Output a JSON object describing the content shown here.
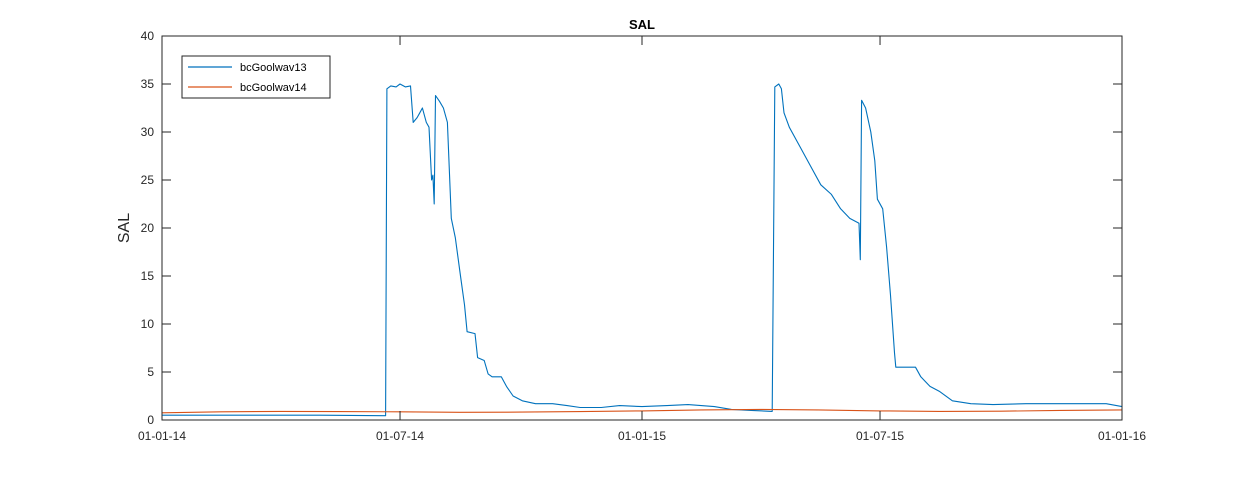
{
  "chart_data": {
    "type": "line",
    "title": "SAL",
    "xlabel": "",
    "ylabel": "SAL",
    "xlim": [
      "2014-01-01",
      "2016-01-01"
    ],
    "ylim": [
      0,
      40
    ],
    "x_ticks": [
      "2014-01-01",
      "2014-07-01",
      "2015-01-01",
      "2015-07-01",
      "2016-01-01"
    ],
    "x_tick_labels": [
      "01-01-14",
      "01-07-14",
      "01-01-15",
      "01-07-15",
      "01-01-16"
    ],
    "y_ticks": [
      0,
      5,
      10,
      15,
      20,
      25,
      30,
      35,
      40
    ],
    "y_tick_labels": [
      "0",
      "5",
      "10",
      "15",
      "20",
      "25",
      "30",
      "35",
      "40"
    ],
    "grid": false,
    "legend_position": "top-left",
    "series": [
      {
        "name": "bcGoolwav13",
        "color": "#0072BD",
        "points": [
          [
            "2014-01-01",
            0.5
          ],
          [
            "2014-03-01",
            0.5
          ],
          [
            "2014-05-01",
            0.5
          ],
          [
            "2014-06-20",
            0.45
          ],
          [
            "2014-06-21",
            34.5
          ],
          [
            "2014-06-24",
            34.8
          ],
          [
            "2014-06-28",
            34.7
          ],
          [
            "2014-07-01",
            35.0
          ],
          [
            "2014-07-05",
            34.7
          ],
          [
            "2014-07-09",
            34.8
          ],
          [
            "2014-07-11",
            31.0
          ],
          [
            "2014-07-14",
            31.5
          ],
          [
            "2014-07-16",
            32.0
          ],
          [
            "2014-07-18",
            32.5
          ],
          [
            "2014-07-21",
            31.0
          ],
          [
            "2014-07-23",
            30.5
          ],
          [
            "2014-07-25",
            25.0
          ],
          [
            "2014-07-26",
            25.5
          ],
          [
            "2014-07-27",
            22.5
          ],
          [
            "2014-07-28",
            33.8
          ],
          [
            "2014-07-31",
            33.2
          ],
          [
            "2014-08-03",
            32.5
          ],
          [
            "2014-08-06",
            31.0
          ],
          [
            "2014-08-09",
            21.0
          ],
          [
            "2014-08-12",
            19.0
          ],
          [
            "2014-08-16",
            15.0
          ],
          [
            "2014-08-19",
            12.0
          ],
          [
            "2014-08-21",
            9.2
          ],
          [
            "2014-08-27",
            9.0
          ],
          [
            "2014-08-29",
            6.5
          ],
          [
            "2014-09-03",
            6.2
          ],
          [
            "2014-09-06",
            4.8
          ],
          [
            "2014-09-09",
            4.5
          ],
          [
            "2014-09-16",
            4.5
          ],
          [
            "2014-09-20",
            3.5
          ],
          [
            "2014-09-25",
            2.5
          ],
          [
            "2014-10-02",
            2.0
          ],
          [
            "2014-10-12",
            1.7
          ],
          [
            "2014-10-25",
            1.7
          ],
          [
            "2014-11-05",
            1.5
          ],
          [
            "2014-11-15",
            1.3
          ],
          [
            "2014-12-01",
            1.3
          ],
          [
            "2014-12-15",
            1.5
          ],
          [
            "2015-01-01",
            1.4
          ],
          [
            "2015-01-20",
            1.5
          ],
          [
            "2015-02-05",
            1.6
          ],
          [
            "2015-02-25",
            1.4
          ],
          [
            "2015-03-10",
            1.1
          ],
          [
            "2015-03-25",
            1.0
          ],
          [
            "2015-04-10",
            0.9
          ],
          [
            "2015-04-12",
            34.7
          ],
          [
            "2015-04-15",
            35.0
          ],
          [
            "2015-04-17",
            34.5
          ],
          [
            "2015-04-19",
            32.0
          ],
          [
            "2015-04-23",
            30.5
          ],
          [
            "2015-05-01",
            28.5
          ],
          [
            "2015-05-09",
            26.5
          ],
          [
            "2015-05-17",
            24.5
          ],
          [
            "2015-05-25",
            23.5
          ],
          [
            "2015-06-01",
            22.0
          ],
          [
            "2015-06-08",
            21.0
          ],
          [
            "2015-06-15",
            20.5
          ],
          [
            "2015-06-16",
            16.7
          ],
          [
            "2015-06-17",
            33.3
          ],
          [
            "2015-06-20",
            32.5
          ],
          [
            "2015-06-24",
            30.0
          ],
          [
            "2015-06-27",
            27.0
          ],
          [
            "2015-06-29",
            23.0
          ],
          [
            "2015-07-03",
            22.0
          ],
          [
            "2015-07-06",
            18.0
          ],
          [
            "2015-07-09",
            13.0
          ],
          [
            "2015-07-12",
            7.0
          ],
          [
            "2015-07-13",
            5.5
          ],
          [
            "2015-07-23",
            5.5
          ],
          [
            "2015-07-28",
            5.5
          ],
          [
            "2015-08-01",
            4.5
          ],
          [
            "2015-08-08",
            3.5
          ],
          [
            "2015-08-15",
            3.0
          ],
          [
            "2015-08-25",
            2.0
          ],
          [
            "2015-09-08",
            1.7
          ],
          [
            "2015-09-25",
            1.6
          ],
          [
            "2015-10-20",
            1.7
          ],
          [
            "2015-11-20",
            1.7
          ],
          [
            "2015-12-20",
            1.7
          ],
          [
            "2016-01-01",
            1.4
          ]
        ]
      },
      {
        "name": "bcGoolwav14",
        "color": "#D95319",
        "points": [
          [
            "2014-01-01",
            0.75
          ],
          [
            "2014-02-15",
            0.85
          ],
          [
            "2014-04-01",
            0.9
          ],
          [
            "2014-05-15",
            0.88
          ],
          [
            "2014-07-01",
            0.85
          ],
          [
            "2014-08-15",
            0.8
          ],
          [
            "2014-10-01",
            0.82
          ],
          [
            "2014-11-15",
            0.88
          ],
          [
            "2015-01-01",
            0.95
          ],
          [
            "2015-02-15",
            1.05
          ],
          [
            "2015-04-01",
            1.1
          ],
          [
            "2015-05-15",
            1.05
          ],
          [
            "2015-07-01",
            0.95
          ],
          [
            "2015-08-15",
            0.9
          ],
          [
            "2015-10-01",
            0.92
          ],
          [
            "2015-11-15",
            1.0
          ],
          [
            "2016-01-01",
            1.05
          ]
        ]
      }
    ]
  }
}
